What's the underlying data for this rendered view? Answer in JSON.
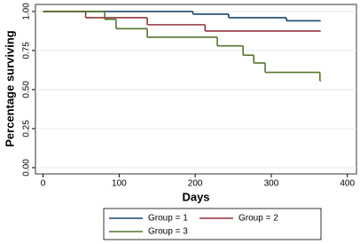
{
  "chart_data": {
    "type": "step",
    "xlabel": "Days",
    "ylabel": "Percentage surviving",
    "xlim": [
      -10,
      412
    ],
    "xticks": [
      0,
      100,
      200,
      300,
      400
    ],
    "ylim": [
      -0.04,
      1.045
    ],
    "yticks": [
      {
        "value": 0,
        "label": "0.00"
      },
      {
        "value": 0.25,
        "label": "0.25"
      },
      {
        "value": 0.5,
        "label": "0.50"
      },
      {
        "value": 0.75,
        "label": "0.75"
      },
      {
        "value": 1,
        "label": "1.00"
      }
    ],
    "grid": true,
    "series": [
      {
        "name": "Group = 1",
        "color": "#1a476f",
        "x": [
          0,
          197,
          244,
          320,
          365
        ],
        "values": [
          1,
          0.983,
          0.96,
          0.94,
          0.94
        ]
      },
      {
        "name": "Group = 2",
        "color": "#90353b",
        "x": [
          0,
          56,
          137,
          213,
          365
        ],
        "values": [
          1,
          0.96,
          0.915,
          0.875,
          0.875
        ]
      },
      {
        "name": "Group = 3",
        "color": "#55752f",
        "x": [
          0,
          81,
          96,
          137,
          229,
          263,
          277,
          292,
          364,
          365
        ],
        "values": [
          1,
          0.95,
          0.89,
          0.835,
          0.78,
          0.72,
          0.67,
          0.61,
          0.555,
          0.555
        ]
      }
    ]
  }
}
